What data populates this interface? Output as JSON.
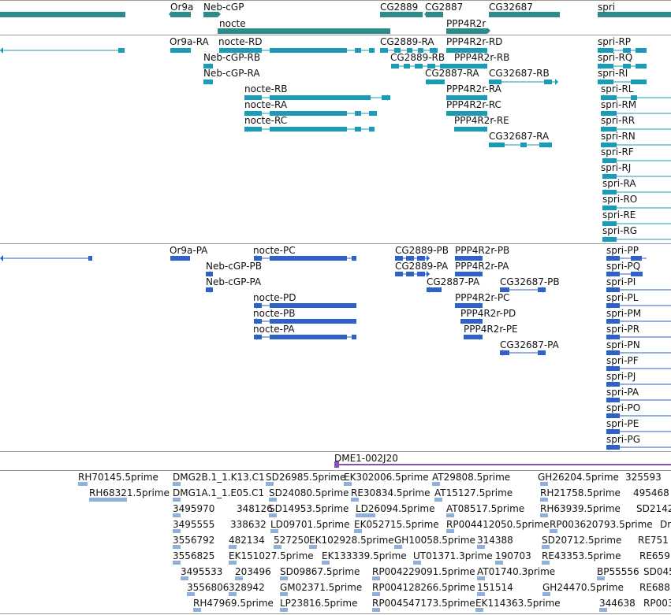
{
  "colors": {
    "gene": "#2e8b8b",
    "transcript": "#1a9cb8",
    "protein": "#2f62c8",
    "clone": "#8b4fb8",
    "est": "#8fb0d8"
  },
  "genes": [
    {
      "label": "Or9a",
      "arrow": "left"
    },
    {
      "label": "Neb-cGP",
      "arrow": "right"
    },
    {
      "label": "nocte",
      "arrow": "right"
    },
    {
      "label": "CG2889",
      "arrow": "none"
    },
    {
      "label": "CG2887",
      "arrow": "left"
    },
    {
      "label": "PPP4R2r",
      "arrow": "right"
    },
    {
      "label": "CG32687",
      "arrow": "right"
    },
    {
      "label": "spri",
      "arrow": "right"
    }
  ],
  "transcripts": [
    "Or9a-RA",
    "nocte-RD",
    "CG2889-RA",
    "PPP4R2r-RD",
    "spri-RP",
    "Neb-cGP-RB",
    "CG2889-RB",
    "PPP4R2r-RB",
    "spri-RQ",
    "Neb-cGP-RA",
    "CG2887-RA",
    "CG32687-RB",
    "spri-RI",
    "nocte-RB",
    "PPP4R2r-RA",
    "spri-RL",
    "nocte-RA",
    "PPP4R2r-RC",
    "spri-RM",
    "nocte-RC",
    "PPP4R2r-RE",
    "spri-RR",
    "spri-RN",
    "CG32687-RA",
    "spri-RF",
    "spri-RJ",
    "spri-RA",
    "spri-RO",
    "spri-RE",
    "spri-RG"
  ],
  "proteins": [
    "Or9a-PA",
    "nocte-PC",
    "CG2889-PB",
    "PPP4R2r-PB",
    "spri-PP",
    "Neb-cGP-PB",
    "CG2889-PA",
    "PPP4R2r-PA",
    "spri-PQ",
    "Neb-cGP-PA",
    "CG2887-PA",
    "CG32687-PB",
    "spri-PI",
    "nocte-PD",
    "PPP4R2r-PC",
    "spri-PL",
    "nocte-PB",
    "PPP4R2r-PD",
    "spri-PM",
    "nocte-PA",
    "PPP4R2r-PE",
    "spri-PR",
    "CG32687-PA",
    "spri-PN",
    "spri-PF",
    "spri-PJ",
    "spri-PA",
    "spri-PO",
    "spri-PE",
    "spri-PG"
  ],
  "clone": "DME1-002J20",
  "ests": [
    "RH70145.5prime",
    "DMG2B.1_1.K13.C1",
    "SD26985.5prime",
    "EK302006.5prime",
    "AT29808.5prime",
    "GH26204.5prime",
    "325593",
    "RH68321.5prime",
    "DMG1A.1_1.E05.C1",
    "SD24080.5prime",
    "RE30834.5prime",
    "AT15127.5prime",
    "RH21758.5prime",
    "495468",
    "3495970",
    "348126",
    "SD14953.5prime",
    "LD26094.5prime",
    "AT08517.5prime",
    "RH63939.5prime",
    "SD2142",
    "3495555",
    "338632",
    "LD09701.5prime",
    "EK052715.5prime",
    "RP004412050.5prime",
    "RP003620793.5prime",
    "Dn",
    "3556792",
    "482134",
    "527250",
    "EK102928.5prime",
    "GH10058.5prime",
    "314388",
    "SD20712.5prime",
    "RE751",
    "3556825",
    "EK151027.5prime",
    "EK133339.5prime",
    "UT01371.3prime",
    "190703",
    "RE43353.5prime",
    "RE659",
    "3495533",
    "203496",
    "SD09867.5prime",
    "RP004229091.5prime",
    "AT01740.3prime",
    "BP55556",
    "SD045",
    "3556806",
    "328942",
    "GM02371.5prime",
    "RP004128266.5prime",
    "151514",
    "GH24470.5prime",
    "RE688",
    "RH47969.5prime",
    "LP23816.5prime",
    "RP004547173.5prime",
    "EK114363.5prime",
    "344638",
    "RP003"
  ]
}
